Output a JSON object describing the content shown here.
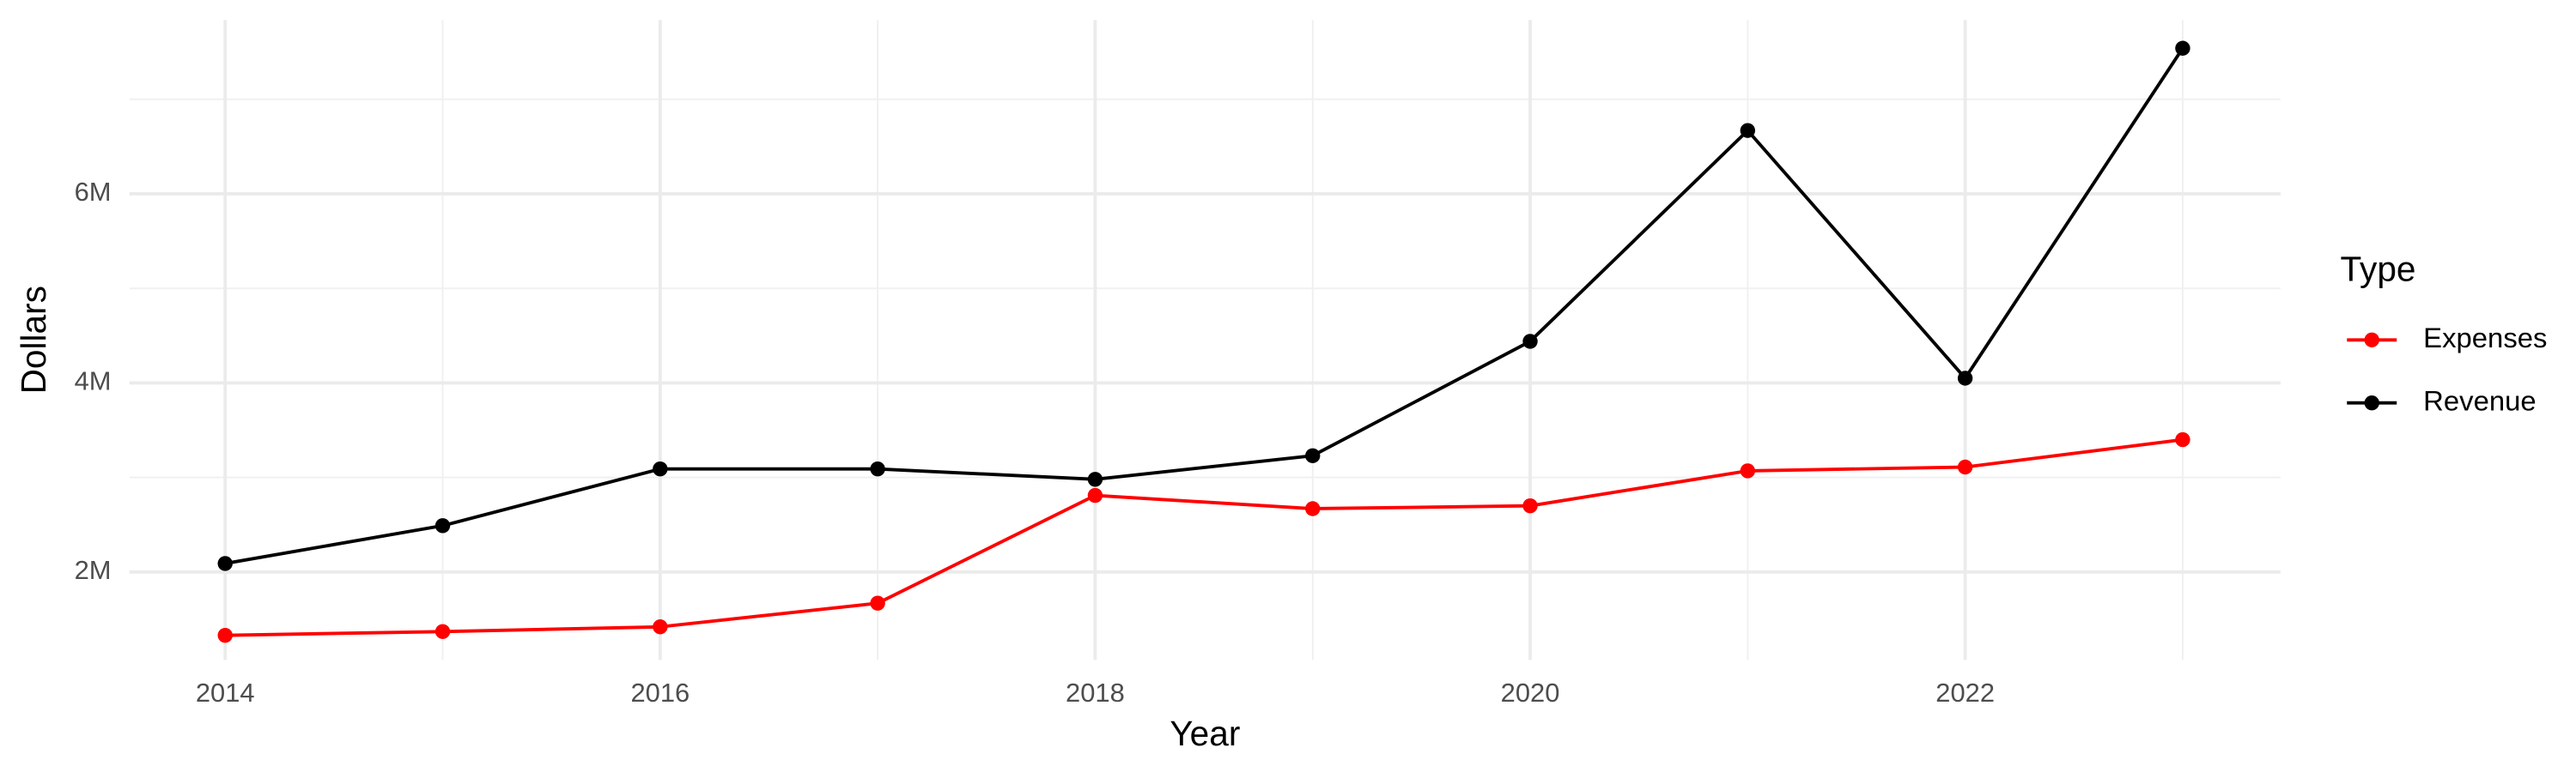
{
  "chart_data": {
    "type": "line",
    "x_label": "Year",
    "y_label": "Dollars",
    "x": [
      2014,
      2015,
      2016,
      2017,
      2018,
      2019,
      2020,
      2021,
      2022,
      2023
    ],
    "series": [
      {
        "name": "Expenses",
        "color": "#ff0000",
        "values": [
          1330000,
          1370000,
          1420000,
          1670000,
          2810000,
          2670000,
          2700000,
          3070000,
          3110000,
          3400000
        ]
      },
      {
        "name": "Revenue",
        "color": "#000000",
        "values": [
          2090000,
          2490000,
          3090000,
          3090000,
          2980000,
          3230000,
          4440000,
          6670000,
          4050000,
          7540000
        ]
      }
    ],
    "legend_title": "Type",
    "legend": "right",
    "xlim": [
      2013.56,
      2023.45
    ],
    "xticks": [
      2014,
      2016,
      2018,
      2020,
      2022
    ],
    "minor_xticks": [
      2015,
      2017,
      2019,
      2021,
      2023
    ],
    "ylim": [
      1070000,
      7840000
    ],
    "yticks": [
      {
        "value": 2000000,
        "label": "2M"
      },
      {
        "value": 4000000,
        "label": "4M"
      },
      {
        "value": 6000000,
        "label": "6M"
      }
    ],
    "minor_yticks": [
      3000000,
      5000000,
      7000000
    ],
    "grid": true
  }
}
